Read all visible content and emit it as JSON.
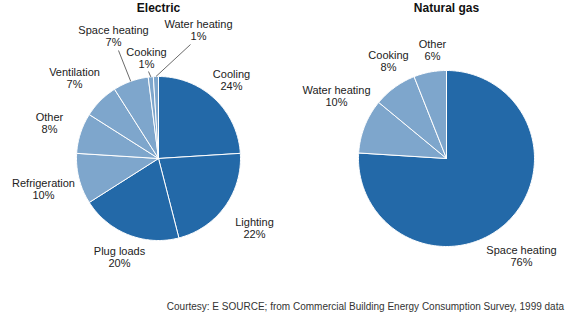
{
  "caption": "Courtesy: E SOURCE; from Commercial Building Energy Consumption Survey, 1999 data",
  "chart_data": [
    {
      "type": "pie",
      "title": "Electric",
      "categories": [
        "Cooling",
        "Lighting",
        "Plug loads",
        "Refrigeration",
        "Other",
        "Ventilation",
        "Space heating",
        "Cooking",
        "Water heating"
      ],
      "values": [
        24,
        22,
        20,
        10,
        8,
        7,
        7,
        1,
        1
      ],
      "value_labels": [
        "24%",
        "22%",
        "20%",
        "10%",
        "8%",
        "7%",
        "7%",
        "1%",
        "1%"
      ],
      "colors": [
        "#2369a8",
        "#2369a8",
        "#2369a8",
        "#7ea6cc",
        "#7ea6cc",
        "#7ea6cc",
        "#7ea6cc",
        "#7ea6cc",
        "#7ea6cc"
      ],
      "data_labels": true
    },
    {
      "type": "pie",
      "title": "Natural gas",
      "categories": [
        "Space heating",
        "Water heating",
        "Cooking",
        "Other"
      ],
      "values": [
        76,
        10,
        8,
        6
      ],
      "value_labels": [
        "76%",
        "10%",
        "8%",
        "6%"
      ],
      "colors": [
        "#2369a8",
        "#7ea6cc",
        "#7ea6cc",
        "#7ea6cc"
      ],
      "data_labels": true
    }
  ]
}
